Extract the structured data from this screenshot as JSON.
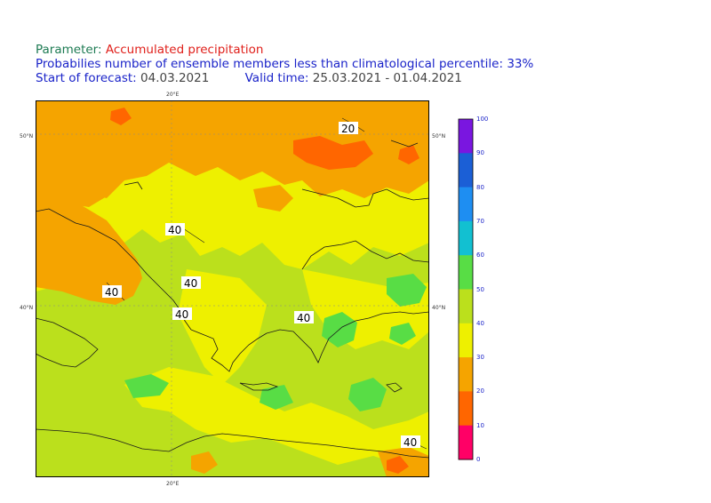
{
  "header": {
    "parameter_label": "Parameter:",
    "parameter_value": "Accumulated precipitation",
    "probability_text": "Probabilies number of ensemble members less than climatological percentile: 33%",
    "forecast_label": "Start of forecast:",
    "forecast_value": "04.03.2021",
    "valid_label": "Valid time:",
    "valid_value": "25.03.2021 - 01.04.2021"
  },
  "map": {
    "lon_label": "20°E",
    "lat_labels": [
      "50°N",
      "40°N"
    ],
    "contour_labels": [
      "20",
      "40",
      "40",
      "40",
      "40",
      "40",
      "40"
    ]
  },
  "colorbar": {
    "ticks": [
      "100",
      "90",
      "80",
      "70",
      "60",
      "50",
      "40",
      "30",
      "20",
      "10",
      "0"
    ],
    "colors": [
      "#7a16e0",
      "#1b5fd6",
      "#1e8ef2",
      "#12c0d1",
      "#58dd45",
      "#bbe01c",
      "#eef000",
      "#f5a400",
      "#ff6600",
      "#ff0066"
    ]
  },
  "colors": {
    "orange": "#f5a400",
    "dark_orange": "#ff6600",
    "yellow": "#eef000",
    "lime": "#bbe01c",
    "green": "#58dd45",
    "title_red": "#e0201b",
    "title_blue": "#1a23c9"
  }
}
